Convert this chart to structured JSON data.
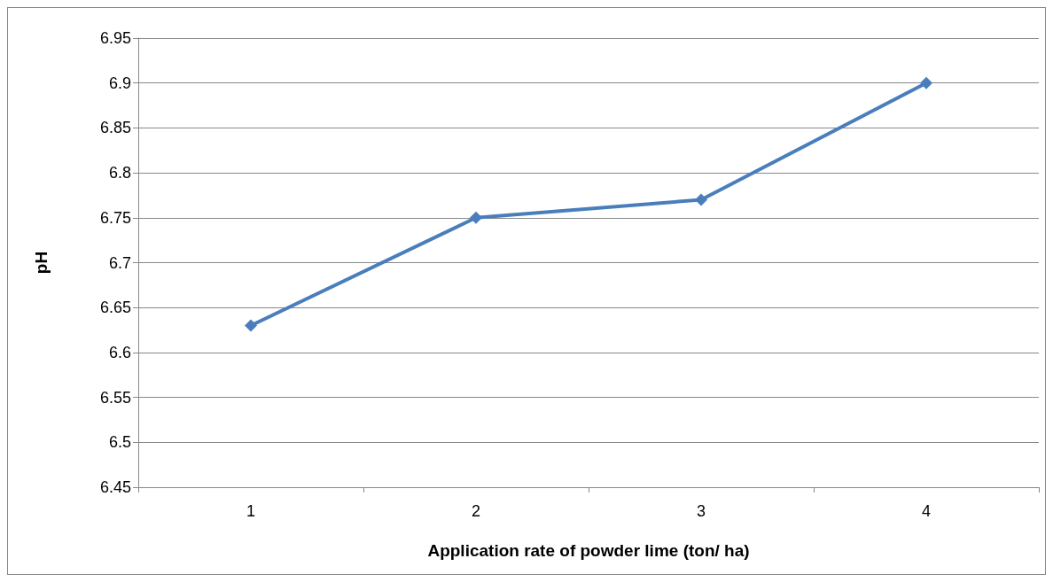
{
  "chart_data": {
    "type": "line",
    "xlabel": "Application rate of powder lime (ton/ ha)",
    "ylabel": "pH",
    "categories": [
      "1",
      "2",
      "3",
      "4"
    ],
    "series": [
      {
        "color": "#4a7ebb",
        "values": [
          6.63,
          6.75,
          6.77,
          6.9
        ]
      }
    ],
    "ylim": [
      6.45,
      6.95
    ],
    "yticks": [
      6.45,
      6.5,
      6.55,
      6.6,
      6.65,
      6.7,
      6.75,
      6.8,
      6.85,
      6.9,
      6.95
    ],
    "grid": "y",
    "marker": "diamond",
    "line_style": "solid"
  }
}
